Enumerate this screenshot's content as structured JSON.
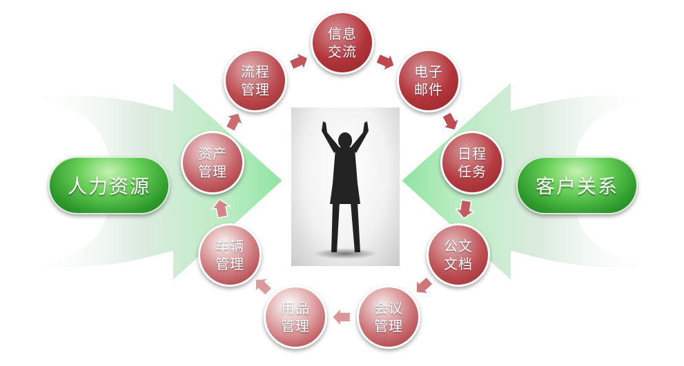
{
  "left_pill": {
    "label": "人力资源"
  },
  "right_pill": {
    "label": "客户关系"
  },
  "nodes": [
    {
      "label": "信息\n交流"
    },
    {
      "label": "电子\n邮件"
    },
    {
      "label": "日程\n任务"
    },
    {
      "label": "公文\n文档"
    },
    {
      "label": "会议\n管理"
    },
    {
      "label": "用品\n管理"
    },
    {
      "label": "车辆\n管理"
    },
    {
      "label": "资产\n管理"
    },
    {
      "label": "流程\n管理"
    }
  ],
  "colors": {
    "node_dark": "#b2343a",
    "node_light": "#ecc0c2",
    "pill_green": "#3cb043",
    "arrow_green": "#a8e8b0"
  },
  "central_image": "person-arms-raised-silhouette"
}
